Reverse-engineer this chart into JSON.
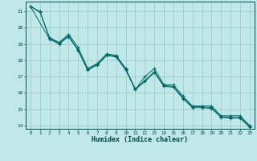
{
  "title": "",
  "xlabel": "Humidex (Indice chaleur)",
  "bg_color": "#c0e8e8",
  "grid_color": "#a0cccc",
  "line_color": "#006868",
  "xlim": [
    -0.5,
    23.5
  ],
  "ylim": [
    13.8,
    21.6
  ],
  "yticks": [
    14,
    15,
    16,
    17,
    18,
    19,
    20,
    21
  ],
  "xticks": [
    0,
    1,
    2,
    3,
    4,
    5,
    6,
    7,
    8,
    9,
    10,
    11,
    12,
    13,
    14,
    15,
    16,
    17,
    18,
    19,
    20,
    21,
    22,
    23
  ],
  "series1_x": [
    0,
    1,
    2,
    3,
    4,
    5,
    6,
    7,
    8,
    9,
    10,
    11,
    12,
    13,
    14,
    15,
    16,
    17,
    18,
    19,
    20,
    21,
    22,
    23
  ],
  "series1_y": [
    21.3,
    21.0,
    19.4,
    19.1,
    19.6,
    18.8,
    17.5,
    17.8,
    18.4,
    18.3,
    17.5,
    16.2,
    17.0,
    17.5,
    16.5,
    16.5,
    15.8,
    15.2,
    15.2,
    15.2,
    14.6,
    14.6,
    14.6,
    14.0
  ],
  "series2_x": [
    0,
    1,
    2,
    3,
    4,
    5,
    6,
    7,
    8,
    9,
    10,
    11,
    12,
    13,
    14,
    15,
    16,
    17,
    18,
    19,
    20,
    21,
    22,
    23
  ],
  "series2_y": [
    21.3,
    20.95,
    19.35,
    19.05,
    19.5,
    18.65,
    17.45,
    17.75,
    18.35,
    18.25,
    17.45,
    16.25,
    16.75,
    17.3,
    16.45,
    16.4,
    15.7,
    15.15,
    15.15,
    15.1,
    14.55,
    14.5,
    14.5,
    13.95
  ],
  "series3_x": [
    0,
    2,
    3,
    4,
    5,
    6,
    7,
    8,
    9,
    10,
    11,
    12,
    13,
    14,
    15,
    16,
    17,
    18,
    19,
    20,
    21,
    22,
    23
  ],
  "series3_y": [
    21.3,
    19.3,
    19.0,
    19.45,
    18.6,
    17.4,
    17.7,
    18.3,
    18.2,
    17.4,
    16.2,
    16.7,
    17.25,
    16.4,
    16.35,
    15.65,
    15.1,
    15.1,
    15.05,
    14.5,
    14.45,
    14.45,
    13.9
  ]
}
